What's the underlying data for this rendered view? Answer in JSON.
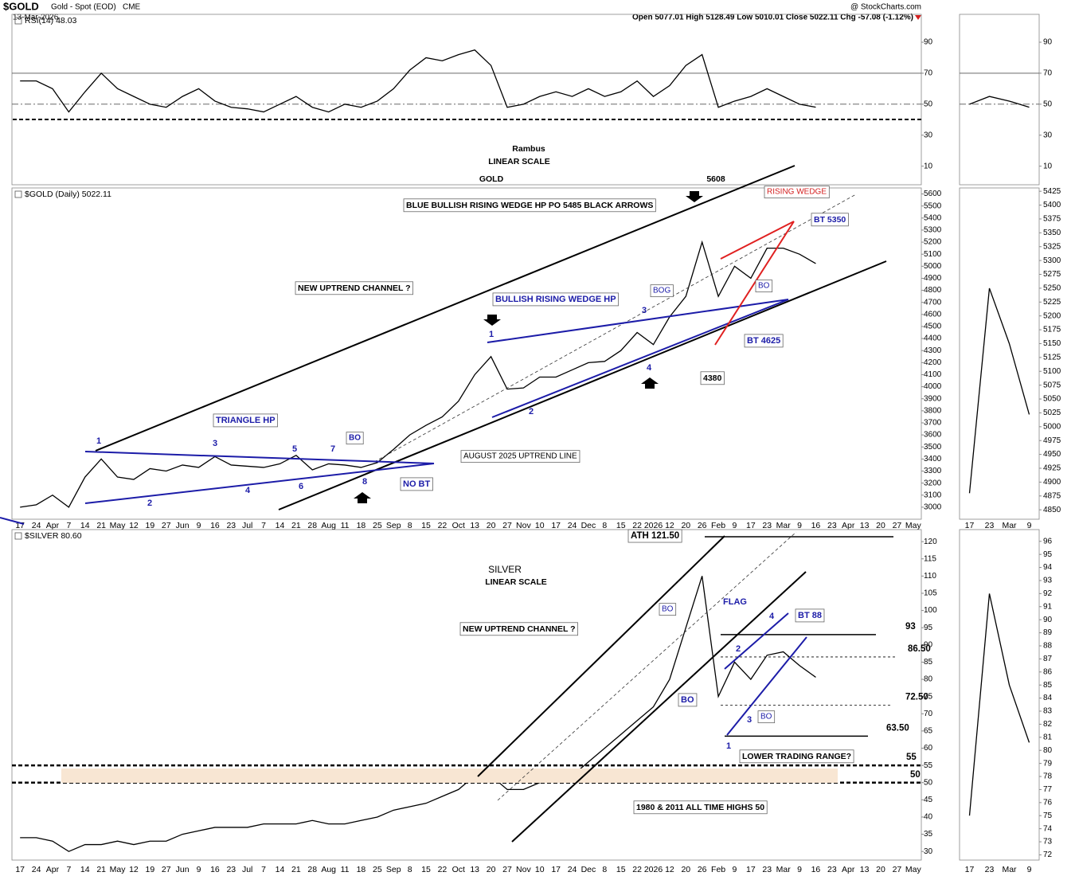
{
  "header": {
    "symbol": "$GOLD",
    "name": "Gold - Spot (EOD)",
    "exchange": "CME",
    "date": "13-Mar-2026",
    "quote": "Open 5077.01  High 5128.49  Low 5010.01  Close 5022.11  Chg -57.08 (-1.12%)",
    "source": "@ StockCharts.com"
  },
  "chart_data": [
    {
      "type": "line",
      "title": "RSI(14) 48.03",
      "color": "#000000",
      "values": [
        65,
        65,
        60,
        45,
        58,
        70,
        60,
        55,
        50,
        48,
        55,
        60,
        52,
        48,
        47,
        45,
        50,
        55,
        48,
        45,
        50,
        48,
        52,
        60,
        72,
        80,
        78,
        82,
        85,
        75,
        48,
        50,
        55,
        58,
        55,
        60,
        55,
        58,
        65,
        55,
        62,
        75,
        82,
        48,
        52,
        55,
        60,
        55,
        50,
        48.03,
        null,
        null,
        null,
        null,
        null,
        null
      ],
      "ylim": [
        -2,
        108
      ],
      "yticks": [
        10,
        30,
        50,
        70,
        90
      ],
      "reference_lines": [
        70,
        50
      ]
    },
    {
      "type": "line",
      "title": "$GOLD (Daily) 5022.11",
      "color": "#000000",
      "categories": [
        "17",
        "24",
        "Apr",
        "7",
        "14",
        "21",
        "May",
        "12",
        "19",
        "27",
        "Jun",
        "9",
        "16",
        "23",
        "Jul",
        "7",
        "14",
        "21",
        "28",
        "Aug",
        "11",
        "18",
        "25",
        "Sep",
        "8",
        "15",
        "22",
        "Oct",
        "13",
        "20",
        "27",
        "Nov",
        "10",
        "17",
        "24",
        "Dec",
        "8",
        "15",
        "22",
        "2026",
        "12",
        "20",
        "26",
        "Feb",
        "9",
        "17",
        "23",
        "Mar",
        "9",
        "16",
        "23",
        "Apr",
        "13",
        "20",
        "27",
        "May"
      ],
      "values": [
        3000,
        3020,
        3100,
        3000,
        3250,
        3400,
        3250,
        3230,
        3320,
        3300,
        3350,
        3330,
        3420,
        3350,
        3340,
        3330,
        3360,
        3430,
        3310,
        3360,
        3350,
        3330,
        3370,
        3480,
        3600,
        3680,
        3750,
        3880,
        4100,
        4250,
        3980,
        3990,
        4080,
        4080,
        4140,
        4200,
        4210,
        4300,
        4450,
        4350,
        4580,
        4750,
        5200,
        4750,
        5000,
        4900,
        5150,
        5150,
        5100,
        5022.11,
        null,
        null,
        null,
        null,
        null,
        null
      ],
      "ylim": [
        2900,
        5650
      ],
      "yticks": [
        3000,
        3100,
        3200,
        3300,
        3400,
        3500,
        3600,
        3700,
        3800,
        3900,
        4000,
        4100,
        4200,
        4300,
        4400,
        4500,
        4600,
        4700,
        4800,
        4900,
        5000,
        5100,
        5200,
        5300,
        5400,
        5500,
        5600
      ],
      "annotations": [
        "Rambus",
        "LINEAR SCALE",
        "GOLD",
        "5608",
        "BLUE BULLISH RISING WEDGE HP PO 5485 BLACK ARROWS",
        "RISING WEDGE",
        "BT 5350",
        "NEW UPTREND CHANNEL ?",
        "BOG",
        "BULLISH RISING WEDGE HP",
        "3",
        "1",
        "BO",
        "BT 4625",
        "4380",
        "4",
        "2",
        "AUGUST 2025 UPTREND LINE",
        "TRIANGLE HP",
        "1",
        "3",
        "5",
        "7",
        "BO",
        "2",
        "4",
        "6",
        "8",
        "NO BT"
      ]
    },
    {
      "type": "line",
      "title": "$SILVER 80.60",
      "color": "#000000",
      "categories": [
        "17",
        "24",
        "Apr",
        "7",
        "14",
        "21",
        "May",
        "12",
        "19",
        "27",
        "Jun",
        "9",
        "16",
        "23",
        "Jul",
        "7",
        "14",
        "21",
        "28",
        "Aug",
        "11",
        "18",
        "25",
        "Sep",
        "8",
        "15",
        "22",
        "Oct",
        "13",
        "20",
        "27",
        "Nov",
        "10",
        "17",
        "24",
        "Dec",
        "8",
        "15",
        "22",
        "2026",
        "12",
        "20",
        "26",
        "Feb",
        "9",
        "17",
        "23",
        "Mar",
        "9",
        "16",
        "23",
        "Apr",
        "13",
        "20",
        "27",
        "May"
      ],
      "values": [
        34,
        34,
        33,
        30,
        32,
        32,
        33,
        32,
        33,
        33,
        35,
        36,
        37,
        37,
        37,
        38,
        38,
        38,
        39,
        38,
        38,
        39,
        40,
        42,
        43,
        44,
        46,
        48,
        52,
        52,
        48,
        48,
        50,
        51,
        52,
        56,
        60,
        64,
        68,
        72,
        80,
        95,
        110,
        75,
        85,
        80,
        87,
        88,
        84,
        80.6,
        null,
        null,
        null,
        null,
        null,
        null
      ],
      "ylim": [
        27.5,
        123.5
      ],
      "yticks": [
        30,
        35,
        40,
        45,
        50,
        55,
        60,
        65,
        70,
        75,
        80,
        85,
        90,
        95,
        100,
        105,
        110,
        115,
        120
      ],
      "levels": [
        93,
        {
          "value": 86.5,
          "label": "86.50"
        },
        {
          "value": 72.5,
          "label": "72.50"
        },
        {
          "value": 63.5,
          "label": "63.50"
        },
        55,
        50
      ],
      "annotations": [
        "ATH 121.50",
        "SILVER",
        "LINEAR SCALE",
        "BO",
        "FLAG",
        "4",
        "BT 88",
        "NEW UPTREND CHANNEL ?",
        "2",
        "BO",
        "3",
        "BO",
        "1",
        "LOWER TRADING RANGE?",
        "1980 & 2011 ALL TIME HIGHS 50"
      ]
    },
    {
      "type": "line",
      "color": "#000000",
      "values": [
        50,
        55,
        52,
        48.03
      ],
      "ylim": [
        -2,
        108
      ],
      "yticks": [
        10,
        30,
        50,
        70,
        90
      ],
      "reference_lines": [
        70,
        50
      ]
    },
    {
      "type": "line",
      "color": "#000000",
      "categories": [
        "17",
        "23",
        "Mar",
        "9"
      ],
      "values": [
        4880,
        5250,
        5150,
        5022.11
      ],
      "ylim": [
        4833,
        5431
      ],
      "yticks": [
        4850,
        4875,
        4900,
        4925,
        4950,
        4975,
        5000,
        5025,
        5050,
        5075,
        5100,
        5125,
        5150,
        5175,
        5200,
        5225,
        5250,
        5275,
        5300,
        5325,
        5350,
        5375,
        5400,
        5425
      ]
    },
    {
      "type": "line",
      "color": "#000000",
      "categories": [
        "17",
        "23",
        "Mar",
        "9"
      ],
      "values": [
        75,
        92,
        85,
        80.6
      ],
      "ylim": [
        71.6,
        96.9
      ],
      "yticks": [
        72,
        73,
        74,
        75,
        76,
        77,
        78,
        79,
        80,
        81,
        82,
        83,
        84,
        85,
        86,
        87,
        88,
        89,
        90,
        91,
        92,
        93,
        94,
        95,
        96
      ]
    }
  ]
}
